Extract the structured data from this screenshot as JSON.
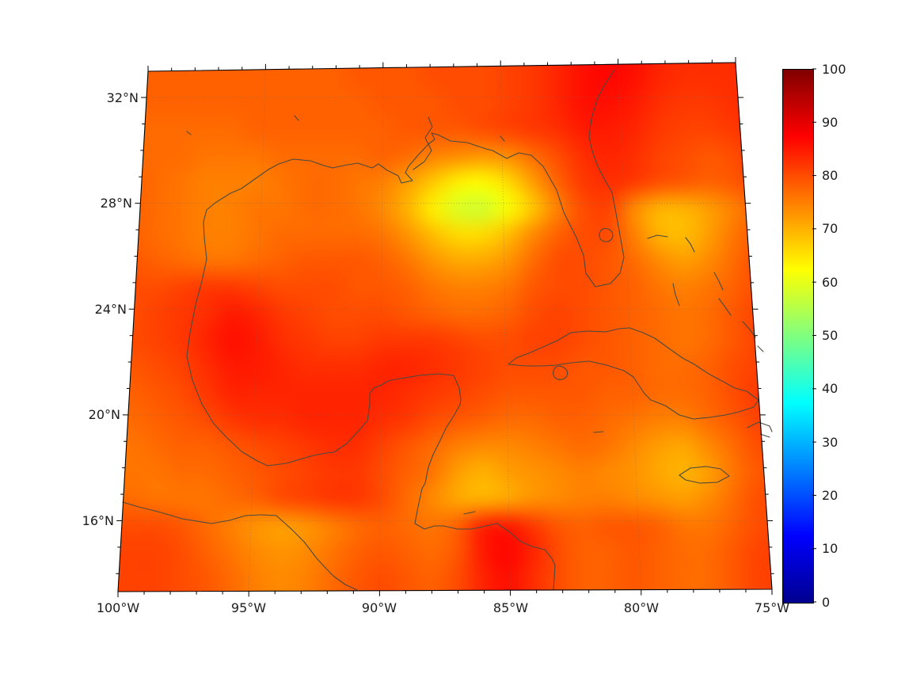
{
  "axes": {
    "lat": {
      "min": 13.4,
      "max": 33.4,
      "minor_tick_step": 1,
      "ticks": [
        {
          "value": 32,
          "label": "32°N"
        },
        {
          "value": 28,
          "label": "28°N"
        },
        {
          "value": 24,
          "label": "24°N"
        },
        {
          "value": 20,
          "label": "20°N"
        },
        {
          "value": 16,
          "label": "16°N"
        }
      ]
    },
    "lon": {
      "min": -100,
      "max": -75,
      "minor_tick_step": 1,
      "ticks": [
        {
          "value": -100,
          "label": "100°W"
        },
        {
          "value": -95,
          "label": "95°W"
        },
        {
          "value": -90,
          "label": "90°W"
        },
        {
          "value": -85,
          "label": "85°W"
        },
        {
          "value": -80,
          "label": "80°W"
        },
        {
          "value": -75,
          "label": "75°W"
        }
      ]
    }
  },
  "colorbar": {
    "min": 0,
    "max": 100,
    "tick_step": 10,
    "tick_labels": [
      "100",
      "90",
      "80",
      "70",
      "60",
      "50",
      "40",
      "30",
      "20",
      "10",
      "0"
    ],
    "colormap": "jet",
    "stops": [
      {
        "t": 0.0,
        "color": "#00008f"
      },
      {
        "t": 0.125,
        "color": "#0000ff"
      },
      {
        "t": 0.375,
        "color": "#00ffff"
      },
      {
        "t": 0.625,
        "color": "#ffff00"
      },
      {
        "t": 0.875,
        "color": "#ff0000"
      },
      {
        "t": 1.0,
        "color": "#800000"
      }
    ]
  },
  "colors": {
    "coastline": "#4a4a3f",
    "frame": "#000000",
    "grid": "#6b6b6b",
    "background": "#ffffff"
  },
  "chart_data": {
    "type": "heatmap",
    "title": "",
    "colormap": "jet",
    "value_range": [
      0,
      100
    ],
    "region": "Gulf of Mexico / Caribbean (conic projection graticule)",
    "lon": [
      -100,
      -99,
      -98,
      -97,
      -96,
      -95,
      -94,
      -93,
      -92,
      -91,
      -90,
      -89,
      -88,
      -87,
      -86,
      -85,
      -84,
      -83,
      -82,
      -81,
      -80,
      -79,
      -78,
      -77,
      -76,
      -75
    ],
    "lat": [
      33.4,
      32.35,
      31.29,
      30.24,
      29.19,
      28.13,
      27.08,
      26.03,
      24.97,
      23.92,
      22.87,
      21.81,
      20.76,
      19.71,
      18.65,
      17.6,
      16.55,
      15.49,
      14.44,
      13.4
    ],
    "values": [
      [
        78,
        78,
        78,
        78,
        78,
        78,
        78,
        78,
        78,
        79,
        79,
        79,
        80,
        80,
        80,
        81,
        82,
        84,
        86,
        87,
        86,
        84,
        83,
        83,
        83,
        83
      ],
      [
        78,
        78,
        78,
        78,
        78,
        78,
        78,
        78,
        78,
        78,
        79,
        79,
        79,
        80,
        80,
        81,
        82,
        84,
        86,
        86,
        85,
        83,
        82,
        82,
        83,
        83
      ],
      [
        77,
        77,
        77,
        77,
        77,
        78,
        78,
        78,
        78,
        78,
        78,
        79,
        79,
        79,
        80,
        81,
        82,
        83,
        85,
        85,
        84,
        82,
        81,
        81,
        82,
        83
      ],
      [
        77,
        77,
        77,
        76,
        76,
        76,
        77,
        77,
        77,
        77,
        78,
        77,
        75,
        74,
        73,
        74,
        77,
        80,
        83,
        84,
        83,
        81,
        80,
        79,
        80,
        82
      ],
      [
        78,
        77,
        76,
        75,
        75,
        75,
        76,
        77,
        77,
        76,
        75,
        72,
        68,
        64,
        63,
        66,
        72,
        78,
        82,
        83,
        82,
        80,
        79,
        78,
        79,
        81
      ],
      [
        78,
        77,
        76,
        75,
        75,
        76,
        76,
        77,
        77,
        76,
        74,
        70,
        64,
        59,
        58,
        62,
        68,
        75,
        80,
        81,
        74,
        70,
        70,
        72,
        75,
        78
      ],
      [
        78,
        77,
        76,
        75,
        75,
        76,
        77,
        77,
        77,
        77,
        76,
        73,
        69,
        66,
        66,
        69,
        74,
        78,
        80,
        80,
        75,
        70,
        69,
        72,
        76,
        79
      ],
      [
        79,
        78,
        77,
        76,
        76,
        77,
        78,
        79,
        79,
        79,
        78,
        76,
        73,
        71,
        71,
        73,
        77,
        80,
        80,
        79,
        77,
        74,
        72,
        74,
        77,
        80
      ],
      [
        80,
        80,
        81,
        82,
        82,
        81,
        80,
        80,
        80,
        79,
        79,
        78,
        76,
        75,
        75,
        76,
        79,
        80,
        80,
        79,
        78,
        76,
        75,
        76,
        78,
        80
      ],
      [
        80,
        81,
        82,
        83,
        85,
        84,
        82,
        81,
        80,
        80,
        80,
        79,
        78,
        77,
        77,
        78,
        80,
        81,
        80,
        79,
        78,
        77,
        76,
        77,
        79,
        81
      ],
      [
        80,
        81,
        82,
        84,
        86,
        85,
        83,
        82,
        81,
        81,
        82,
        82,
        82,
        81,
        80,
        80,
        81,
        81,
        80,
        79,
        78,
        77,
        76,
        77,
        79,
        81
      ],
      [
        79,
        80,
        81,
        83,
        85,
        85,
        84,
        83,
        83,
        83,
        84,
        84,
        83,
        82,
        81,
        80,
        80,
        80,
        79,
        79,
        78,
        77,
        77,
        78,
        80,
        81
      ],
      [
        78,
        79,
        80,
        82,
        84,
        84,
        84,
        84,
        84,
        84,
        84,
        83,
        82,
        81,
        80,
        79,
        79,
        79,
        79,
        78,
        78,
        77,
        77,
        78,
        80,
        82
      ],
      [
        77,
        78,
        79,
        80,
        82,
        83,
        83,
        84,
        84,
        84,
        83,
        82,
        80,
        79,
        78,
        77,
        77,
        78,
        78,
        77,
        76,
        75,
        75,
        77,
        79,
        81
      ],
      [
        76,
        77,
        78,
        78,
        79,
        80,
        81,
        82,
        83,
        83,
        81,
        79,
        77,
        75,
        74,
        74,
        75,
        76,
        77,
        76,
        74,
        72,
        71,
        74,
        77,
        80
      ],
      [
        76,
        76,
        77,
        77,
        78,
        79,
        80,
        81,
        82,
        82,
        80,
        78,
        76,
        72,
        70,
        72,
        73,
        74,
        75,
        74,
        73,
        71,
        70,
        72,
        76,
        79
      ],
      [
        77,
        76,
        76,
        76,
        77,
        78,
        80,
        81,
        82,
        82,
        80,
        77,
        74,
        71,
        70,
        71,
        73,
        74,
        75,
        75,
        74,
        73,
        72,
        74,
        77,
        80
      ],
      [
        80,
        80,
        79,
        77,
        75,
        73,
        72,
        73,
        75,
        77,
        78,
        77,
        76,
        78,
        84,
        85,
        82,
        79,
        78,
        79,
        79,
        78,
        76,
        76,
        78,
        80
      ],
      [
        81,
        81,
        80,
        78,
        76,
        74,
        73,
        74,
        76,
        78,
        79,
        78,
        77,
        79,
        85,
        87,
        84,
        80,
        78,
        78,
        79,
        78,
        77,
        77,
        79,
        81
      ],
      [
        81,
        81,
        80,
        79,
        77,
        75,
        74,
        75,
        77,
        79,
        80,
        79,
        78,
        80,
        84,
        86,
        83,
        80,
        78,
        78,
        79,
        78,
        77,
        77,
        79,
        81
      ]
    ]
  }
}
